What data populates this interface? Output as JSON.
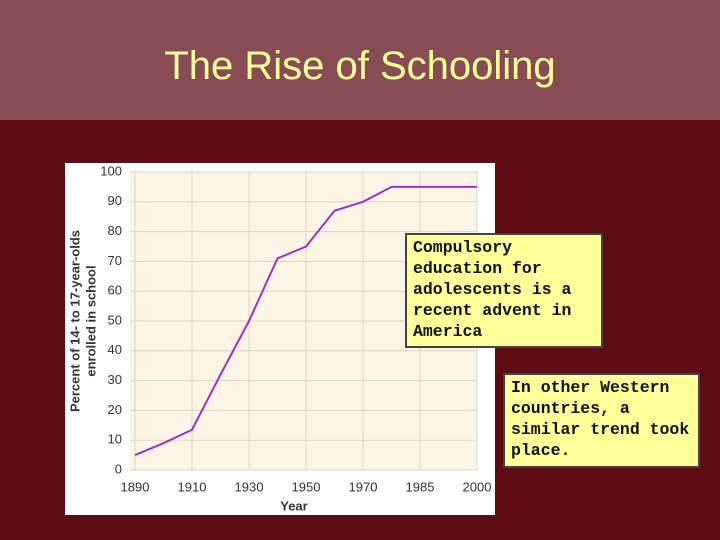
{
  "slide": {
    "title": "The Rise of Schooling",
    "callouts": [
      "Compulsory education for adolescents is a recent advent in America",
      "In other Western countries, a similar trend took place."
    ]
  },
  "chart_data": {
    "type": "line",
    "ylabel": [
      "Percent of 14- to 17-year-olds",
      "enrolled in school"
    ],
    "xlabel": "Year",
    "categories": [
      "1890",
      null,
      "1910",
      null,
      "1930",
      null,
      "1950",
      null,
      "1970",
      null,
      "1985",
      null,
      "2000"
    ],
    "values": [
      5,
      9,
      13.5,
      32,
      50,
      71,
      75,
      87,
      90,
      95,
      95,
      95,
      95
    ],
    "color": "#9933cc",
    "ylim": [
      0,
      100
    ],
    "yticks": [
      0,
      10,
      20,
      30,
      40,
      50,
      60,
      70,
      80,
      90,
      100
    ],
    "grid": true
  }
}
